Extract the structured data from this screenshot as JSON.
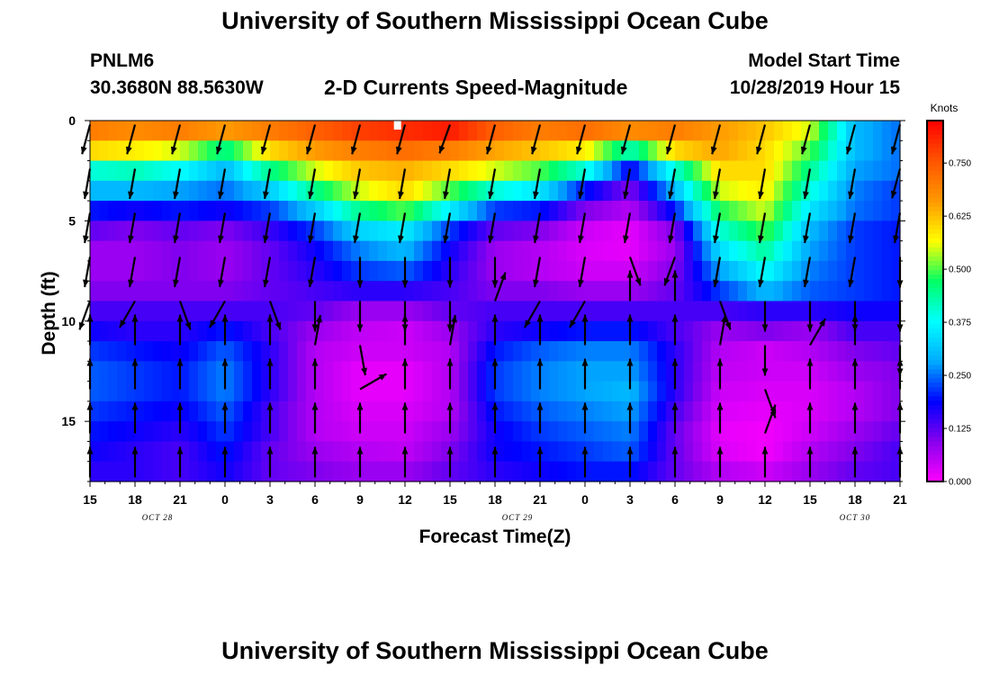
{
  "header": {
    "title_top": "University of Southern Mississippi Ocean Cube",
    "title_bottom": "University of Southern Mississippi Ocean Cube",
    "station_id": "PNLM6",
    "station_coords": "30.3680N 88.5630W",
    "chart_title": "2-D Currents Speed-Magnitude",
    "start_label": "Model Start Time",
    "start_time": "10/28/2019 Hour 15"
  },
  "colors": {
    "axis": "#000000",
    "arrow": "#000000",
    "scale": [
      "#ff00ff",
      "#8800ee",
      "#0000ff",
      "#00aaff",
      "#00ffff",
      "#00ff66",
      "#ffff00",
      "#ff9900",
      "#ff5500",
      "#ff0000"
    ]
  },
  "chart_data": {
    "type": "heatmap",
    "title": "2-D Currents Speed-Magnitude",
    "xlabel": "Forecast Time(Z)",
    "ylabel": "Depth (ft)",
    "x_ticks": [
      "15",
      "18",
      "21",
      "0",
      "3",
      "6",
      "9",
      "12",
      "15",
      "18",
      "21",
      "0",
      "3",
      "6",
      "9",
      "12",
      "15",
      "18",
      "21"
    ],
    "date_labels": [
      {
        "text": "OCT 28",
        "hour_index": 4.5
      },
      {
        "text": "OCT 29",
        "hour_index": 28.5
      },
      {
        "text": "OCT 30",
        "hour_index": 51
      }
    ],
    "xlim_hours": [
      0,
      54
    ],
    "ylim_ft": [
      0,
      18
    ],
    "y_ticks": [
      0,
      5,
      10,
      15
    ],
    "colorbar": {
      "unit": "Knots",
      "range": [
        0,
        0.85
      ],
      "tick_labels": [
        "0.000",
        "0.125",
        "0.250",
        "0.375",
        "0.500",
        "0.625",
        "0.750"
      ],
      "ticks": [
        0,
        0.125,
        0.25,
        0.375,
        0.5,
        0.625,
        0.75
      ]
    },
    "speed_depths_ft": [
      0.5,
      1.5,
      2.5,
      3.5,
      4.5,
      5.5,
      6.5,
      7.5,
      8.5,
      9.5,
      10.5,
      11.5,
      12.5,
      13.5,
      14.5,
      15.5,
      16.5,
      17.5
    ],
    "speed_hours": [
      0,
      3,
      6,
      9,
      12,
      15,
      18,
      21,
      24,
      27,
      30,
      33,
      36,
      39,
      42,
      45,
      48,
      51,
      54
    ],
    "speed_knots": [
      [
        0.7,
        0.68,
        0.7,
        0.66,
        0.7,
        0.74,
        0.78,
        0.8,
        0.82,
        0.74,
        0.7,
        0.72,
        0.68,
        0.7,
        0.66,
        0.62,
        0.55,
        0.3,
        0.25
      ],
      [
        0.6,
        0.58,
        0.55,
        0.45,
        0.6,
        0.66,
        0.7,
        0.72,
        0.7,
        0.65,
        0.62,
        0.58,
        0.42,
        0.6,
        0.65,
        0.6,
        0.5,
        0.3,
        0.25
      ],
      [
        0.4,
        0.42,
        0.38,
        0.3,
        0.45,
        0.55,
        0.62,
        0.64,
        0.6,
        0.55,
        0.5,
        0.4,
        0.18,
        0.4,
        0.6,
        0.6,
        0.45,
        0.28,
        0.25
      ],
      [
        0.3,
        0.3,
        0.28,
        0.25,
        0.32,
        0.45,
        0.55,
        0.6,
        0.5,
        0.4,
        0.35,
        0.2,
        0.1,
        0.3,
        0.55,
        0.58,
        0.4,
        0.26,
        0.22
      ],
      [
        0.2,
        0.18,
        0.2,
        0.18,
        0.22,
        0.32,
        0.45,
        0.5,
        0.36,
        0.22,
        0.2,
        0.1,
        0.06,
        0.2,
        0.48,
        0.55,
        0.35,
        0.25,
        0.22
      ],
      [
        0.12,
        0.1,
        0.12,
        0.1,
        0.15,
        0.22,
        0.33,
        0.36,
        0.22,
        0.12,
        0.1,
        0.04,
        0.02,
        0.1,
        0.4,
        0.5,
        0.3,
        0.22,
        0.2
      ],
      [
        0.08,
        0.08,
        0.1,
        0.08,
        0.12,
        0.18,
        0.26,
        0.3,
        0.18,
        0.08,
        0.06,
        0.03,
        0.02,
        0.08,
        0.34,
        0.44,
        0.28,
        0.22,
        0.2
      ],
      [
        0.08,
        0.08,
        0.1,
        0.08,
        0.12,
        0.16,
        0.22,
        0.24,
        0.16,
        0.08,
        0.06,
        0.04,
        0.04,
        0.1,
        0.28,
        0.38,
        0.26,
        0.22,
        0.2
      ],
      [
        0.1,
        0.1,
        0.1,
        0.1,
        0.12,
        0.14,
        0.16,
        0.16,
        0.14,
        0.1,
        0.1,
        0.08,
        0.08,
        0.12,
        0.22,
        0.3,
        0.24,
        0.22,
        0.2
      ],
      [
        0.14,
        0.14,
        0.14,
        0.14,
        0.14,
        0.12,
        0.08,
        0.08,
        0.12,
        0.14,
        0.14,
        0.14,
        0.14,
        0.14,
        0.14,
        0.16,
        0.16,
        0.18,
        0.18
      ],
      [
        0.18,
        0.16,
        0.16,
        0.2,
        0.14,
        0.08,
        0.05,
        0.04,
        0.08,
        0.16,
        0.18,
        0.2,
        0.2,
        0.14,
        0.08,
        0.1,
        0.08,
        0.14,
        0.14
      ],
      [
        0.22,
        0.2,
        0.18,
        0.24,
        0.16,
        0.06,
        0.04,
        0.04,
        0.06,
        0.2,
        0.24,
        0.26,
        0.26,
        0.16,
        0.06,
        0.04,
        0.06,
        0.1,
        0.12
      ],
      [
        0.24,
        0.22,
        0.2,
        0.26,
        0.16,
        0.06,
        0.02,
        0.02,
        0.06,
        0.22,
        0.26,
        0.28,
        0.28,
        0.16,
        0.05,
        0.04,
        0.04,
        0.08,
        0.1
      ],
      [
        0.24,
        0.22,
        0.2,
        0.26,
        0.16,
        0.06,
        0.02,
        0.02,
        0.06,
        0.22,
        0.26,
        0.28,
        0.3,
        0.16,
        0.04,
        0.03,
        0.03,
        0.06,
        0.1
      ],
      [
        0.22,
        0.2,
        0.18,
        0.24,
        0.14,
        0.06,
        0.03,
        0.03,
        0.06,
        0.2,
        0.24,
        0.26,
        0.28,
        0.14,
        0.03,
        0.02,
        0.03,
        0.06,
        0.1
      ],
      [
        0.2,
        0.18,
        0.16,
        0.22,
        0.14,
        0.06,
        0.04,
        0.04,
        0.08,
        0.18,
        0.22,
        0.24,
        0.26,
        0.12,
        0.02,
        0.01,
        0.04,
        0.08,
        0.12
      ],
      [
        0.18,
        0.16,
        0.14,
        0.2,
        0.12,
        0.08,
        0.06,
        0.05,
        0.1,
        0.18,
        0.2,
        0.22,
        0.24,
        0.12,
        0.03,
        0.01,
        0.06,
        0.1,
        0.14
      ],
      [
        0.16,
        0.16,
        0.14,
        0.18,
        0.12,
        0.1,
        0.08,
        0.08,
        0.12,
        0.16,
        0.18,
        0.2,
        0.2,
        0.12,
        0.06,
        0.04,
        0.08,
        0.12,
        0.14
      ]
    ],
    "arrow_depths_ft": [
      0.2,
      2.4,
      4.6,
      6.8,
      9.0,
      11.2,
      13.4,
      15.6,
      17.8
    ],
    "arrow_hours": [
      0,
      3,
      6,
      9,
      12,
      15,
      18,
      21,
      24,
      27,
      30,
      33,
      36,
      39,
      42,
      45,
      48,
      51,
      54
    ],
    "arrow_angles_deg": [
      [
        195,
        195,
        195,
        195,
        195,
        195,
        195,
        195,
        200,
        195,
        195,
        195,
        195,
        195,
        195,
        195,
        195,
        195,
        195
      ],
      [
        190,
        190,
        190,
        190,
        190,
        190,
        190,
        190,
        190,
        190,
        190,
        190,
        190,
        190,
        190,
        190,
        190,
        190,
        195
      ],
      [
        190,
        190,
        190,
        190,
        190,
        190,
        190,
        190,
        190,
        190,
        190,
        190,
        190,
        190,
        190,
        190,
        190,
        190,
        190
      ],
      [
        190,
        190,
        190,
        190,
        190,
        190,
        180,
        180,
        180,
        180,
        190,
        190,
        160,
        200,
        190,
        190,
        190,
        190,
        180
      ],
      [
        200,
        210,
        160,
        210,
        160,
        180,
        180,
        180,
        180,
        20,
        210,
        210,
        0,
        0,
        160,
        180,
        180,
        180,
        180
      ],
      [
        0,
        0,
        0,
        0,
        0,
        10,
        170,
        0,
        10,
        0,
        0,
        0,
        0,
        0,
        10,
        180,
        30,
        0,
        180
      ],
      [
        0,
        0,
        0,
        0,
        0,
        0,
        60,
        0,
        0,
        0,
        0,
        0,
        0,
        0,
        0,
        160,
        0,
        0,
        0
      ],
      [
        0,
        0,
        0,
        0,
        0,
        0,
        0,
        0,
        0,
        0,
        0,
        0,
        0,
        0,
        0,
        20,
        0,
        0,
        0
      ],
      [
        0,
        0,
        0,
        0,
        0,
        0,
        0,
        0,
        0,
        0,
        0,
        0,
        0,
        0,
        0,
        0,
        0,
        0,
        0
      ]
    ],
    "marker": {
      "hour": 20.5,
      "depth_ft": 0.3
    }
  }
}
